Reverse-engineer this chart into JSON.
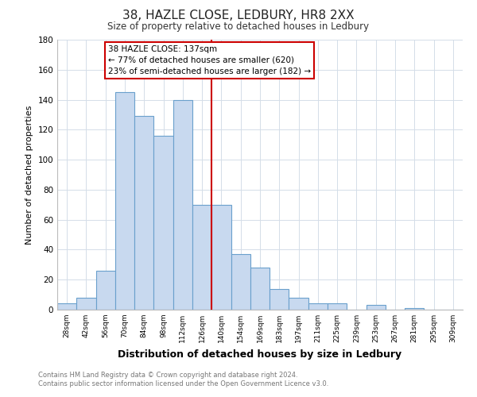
{
  "title": "38, HAZLE CLOSE, LEDBURY, HR8 2XX",
  "subtitle": "Size of property relative to detached houses in Ledbury",
  "xlabel": "Distribution of detached houses by size in Ledbury",
  "ylabel": "Number of detached properties",
  "bar_labels": [
    "28sqm",
    "42sqm",
    "56sqm",
    "70sqm",
    "84sqm",
    "98sqm",
    "112sqm",
    "126sqm",
    "140sqm",
    "154sqm",
    "169sqm",
    "183sqm",
    "197sqm",
    "211sqm",
    "225sqm",
    "239sqm",
    "253sqm",
    "267sqm",
    "281sqm",
    "295sqm",
    "309sqm"
  ],
  "bar_heights": [
    4,
    8,
    26,
    145,
    129,
    116,
    140,
    70,
    70,
    37,
    28,
    14,
    8,
    4,
    4,
    0,
    3,
    0,
    1,
    0,
    0
  ],
  "bar_color": "#c8d9ef",
  "bar_edge_color": "#6aa0cc",
  "vline_color": "#cc0000",
  "annotation_title": "38 HAZLE CLOSE: 137sqm",
  "annotation_line1": "← 77% of detached houses are smaller (620)",
  "annotation_line2": "23% of semi-detached houses are larger (182) →",
  "annotation_box_edge": "#cc0000",
  "ylim": [
    0,
    180
  ],
  "yticks": [
    0,
    20,
    40,
    60,
    80,
    100,
    120,
    140,
    160,
    180
  ],
  "footer1": "Contains HM Land Registry data © Crown copyright and database right 2024.",
  "footer2": "Contains public sector information licensed under the Open Government Licence v3.0."
}
